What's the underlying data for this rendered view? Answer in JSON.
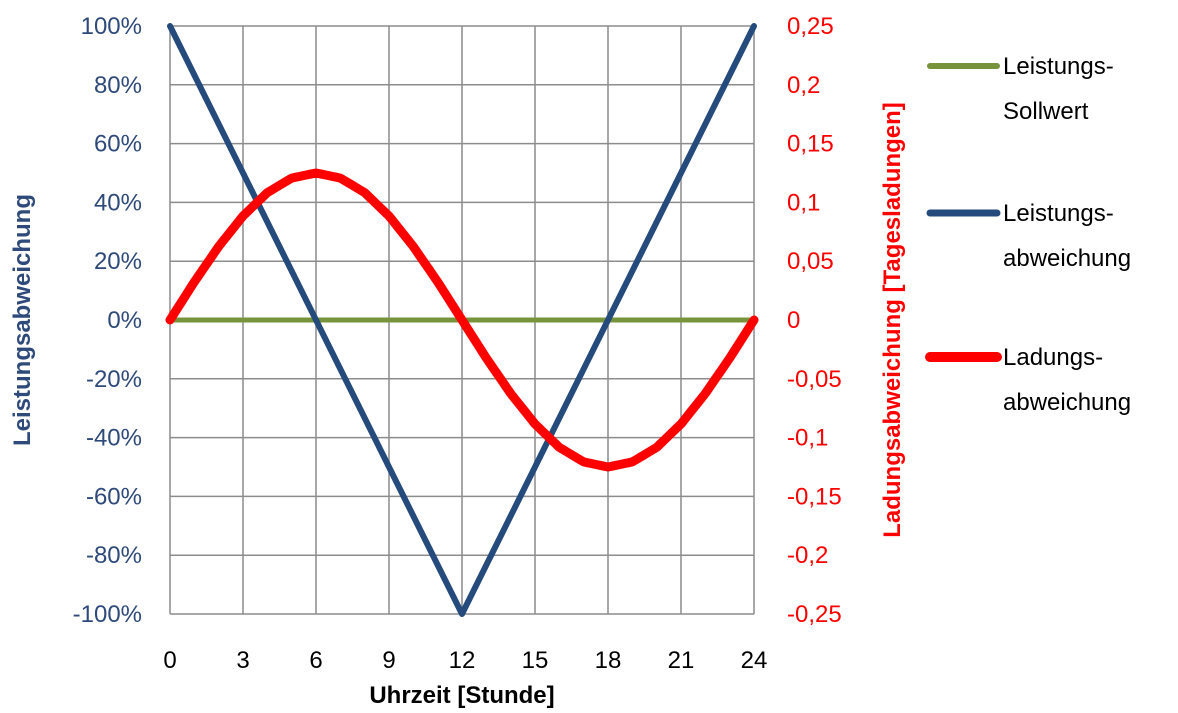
{
  "chart_data": {
    "type": "line",
    "xlabel": "Uhrzeit [Stunde]",
    "ylabel_left": "Leistungsabweichung",
    "ylabel_right": "Ladungsabweichung [Tagesladungen]",
    "x_ticks": [
      0,
      3,
      6,
      9,
      12,
      15,
      18,
      21,
      24
    ],
    "x_tick_labels": [
      "0",
      "3",
      "6",
      "9",
      "12",
      "15",
      "18",
      "21",
      "24"
    ],
    "xlim": [
      0,
      24
    ],
    "ylim_left": [
      -100,
      100
    ],
    "ylim_right": [
      -0.25,
      0.25
    ],
    "y_left_ticks": [
      100,
      80,
      60,
      40,
      20,
      0,
      -20,
      -40,
      -60,
      -80,
      -100
    ],
    "y_left_tick_labels": [
      "100%",
      "80%",
      "60%",
      "40%",
      "20%",
      "0%",
      "-20%",
      "-40%",
      "-60%",
      "-80%",
      "-100%"
    ],
    "y_right_ticks": [
      0.25,
      0.2,
      0.15,
      0.1,
      0.05,
      0,
      -0.05,
      -0.1,
      -0.15,
      -0.2,
      -0.25
    ],
    "y_right_tick_labels": [
      "0,25",
      "0,2",
      "0,15",
      "0,1",
      "0,05",
      "0",
      "-0,05",
      "-0,1",
      "-0,15",
      "-0,2",
      "-0,25"
    ],
    "grid": true,
    "legend_position": "right",
    "series": [
      {
        "name_lines": [
          "Leistungs-",
          "Sollwert"
        ],
        "axis": "left",
        "color": "#77933c",
        "x": [
          0,
          24
        ],
        "y": [
          0,
          0
        ]
      },
      {
        "name_lines": [
          "Leistungs-",
          "abweichung"
        ],
        "axis": "left",
        "color": "#254b7c",
        "x": [
          0,
          12,
          24
        ],
        "y": [
          100,
          -100,
          100
        ]
      },
      {
        "name_lines": [
          "Ladungs-",
          "abweichung"
        ],
        "axis": "right",
        "color": "#ff0000",
        "x": [
          0,
          1,
          2,
          3,
          4,
          5,
          6,
          7,
          8,
          9,
          10,
          11,
          12,
          13,
          14,
          15,
          16,
          17,
          18,
          19,
          20,
          21,
          22,
          23,
          24
        ],
        "y": [
          0,
          0.0324,
          0.0625,
          0.0884,
          0.1083,
          0.1207,
          0.125,
          0.1207,
          0.1083,
          0.0884,
          0.0625,
          0.0324,
          0,
          -0.0324,
          -0.0625,
          -0.0884,
          -0.1083,
          -0.1207,
          -0.125,
          -0.1207,
          -0.1083,
          -0.0884,
          -0.0625,
          -0.0324,
          0
        ]
      }
    ]
  }
}
